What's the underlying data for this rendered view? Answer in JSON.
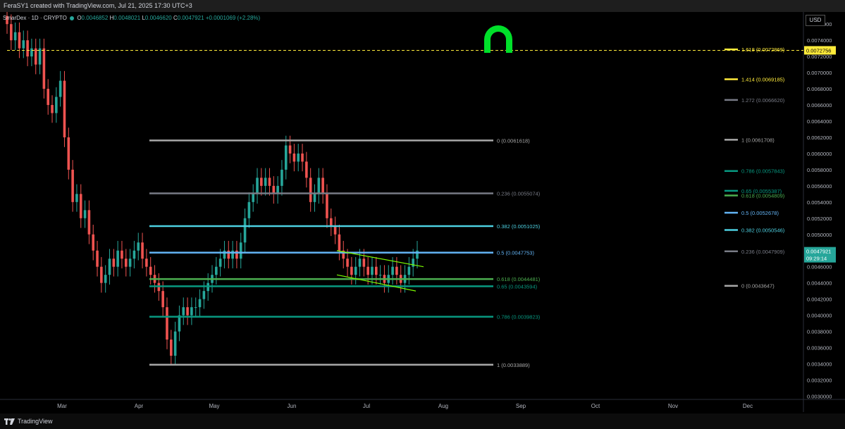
{
  "header": {
    "credit": "FeraSY1 created with TradingView.com, Jul 21, 2025 17:30 UTC+3"
  },
  "legend": {
    "symbol": "SmarDex · 1D · CRYPTO",
    "open_label": "O",
    "open": "0.0046852",
    "high_label": "H",
    "high": "0.0048021",
    "low_label": "L",
    "low": "0.0046620",
    "close_label": "C",
    "close": "0.0047921",
    "change": "+0.0001069 (+2.28%)"
  },
  "currency": "USD",
  "footer": {
    "brand": "TradingView"
  },
  "colors": {
    "up": "#26a69a",
    "down": "#ef5350",
    "logo_green": "#00e02a",
    "fib_white": "#a8a8a8",
    "fib_gray": "#787b86",
    "fib_cyan": "#4dd0e1",
    "fib_blue": "#64b5f6",
    "fib_lime": "#4caf50",
    "fib_teal": "#089981",
    "fib_yellow": "#ffeb3b",
    "wedge": "#7cfc00"
  },
  "chart_data": {
    "type": "candlestick",
    "title": "",
    "ylim": [
      0.0029,
      0.0078
    ],
    "y_ticks": [
      "0.0076000",
      "0.0074000",
      "0.0072000",
      "0.0070000",
      "0.0068000",
      "0.0066000",
      "0.0064000",
      "0.0062000",
      "0.0060000",
      "0.0058000",
      "0.0056000",
      "0.0054000",
      "0.0052000",
      "0.0050000",
      "0.0048000",
      "0.0046000",
      "0.0044000",
      "0.0042000",
      "0.0040000",
      "0.0038000",
      "0.0036000",
      "0.0034000",
      "0.0032000",
      "0.0030000"
    ],
    "x_ticks": [
      "Mar",
      "Apr",
      "May",
      "Jun",
      "Jul",
      "Aug",
      "Sep",
      "Oct",
      "Nov",
      "Dec"
    ],
    "current_price": {
      "value": "0.0047921",
      "countdown": "09:29:14"
    },
    "dashed_level": {
      "value": "0.0072756"
    },
    "candles_close": [
      0.0076,
      0.0074,
      0.0075,
      0.0073,
      0.0074,
      0.0072,
      0.0073,
      0.0071,
      0.0073,
      0.0068,
      0.0066,
      0.0065,
      0.0067,
      0.0069,
      0.0062,
      0.0058,
      0.0054,
      0.0055,
      0.0052,
      0.0053,
      0.005,
      0.0048,
      0.0046,
      0.0044,
      0.0045,
      0.0047,
      0.0046,
      0.0048,
      0.0047,
      0.0046,
      0.0047,
      0.0048,
      0.0049,
      0.0047,
      0.0046,
      0.0045,
      0.0044,
      0.0043,
      0.0041,
      0.0037,
      0.0035,
      0.0038,
      0.004,
      0.0041,
      0.004,
      0.0041,
      0.0041,
      0.0042,
      0.0043,
      0.0044,
      0.0045,
      0.0046,
      0.0047,
      0.0048,
      0.0047,
      0.0048,
      0.0047,
      0.0049,
      0.0052,
      0.0054,
      0.0055,
      0.0057,
      0.0056,
      0.0057,
      0.0056,
      0.0055,
      0.0056,
      0.0058,
      0.0061,
      0.006,
      0.0059,
      0.006,
      0.0059,
      0.0057,
      0.0054,
      0.0055,
      0.0057,
      0.0055,
      0.0052,
      0.0051,
      0.005,
      0.0048,
      0.0047,
      0.0046,
      0.0045,
      0.0046,
      0.0047,
      0.0046,
      0.0045,
      0.0046,
      0.0045,
      0.0045,
      0.0044,
      0.0045,
      0.0046,
      0.0045,
      0.0044,
      0.0045,
      0.0046,
      0.0047,
      0.0048
    ],
    "fib_main": [
      {
        "label": "0 (0.0061618)",
        "value": 0.0061618,
        "color": "fib_white"
      },
      {
        "label": "0.236 (0.0055074)",
        "value": 0.0055074,
        "color": "fib_gray"
      },
      {
        "label": "0.382 (0.0051025)",
        "value": 0.0051025,
        "color": "fib_cyan"
      },
      {
        "label": "0.5 (0.0047753)",
        "value": 0.0047753,
        "color": "fib_blue"
      },
      {
        "label": "0.618 (0.0044481)",
        "value": 0.0044481,
        "color": "fib_lime"
      },
      {
        "label": "0.65 (0.0043594)",
        "value": 0.0043594,
        "color": "fib_teal"
      },
      {
        "label": "0.786 (0.0039823)",
        "value": 0.0039823,
        "color": "fib_teal"
      },
      {
        "label": "1 (0.0033889)",
        "value": 0.0033889,
        "color": "fib_white"
      }
    ],
    "fib_ext": [
      {
        "label": "1.618 (0.0072869)",
        "value": 0.0072869,
        "color": "fib_yellow"
      },
      {
        "label": "1.414 (0.0069185)",
        "value": 0.0069185,
        "color": "fib_yellow"
      },
      {
        "label": "1.272 (0.0066620)",
        "value": 0.006662,
        "color": "fib_gray"
      },
      {
        "label": "1 (0.0061708)",
        "value": 0.0061708,
        "color": "fib_white"
      },
      {
        "label": "0.786 (0.0057843)",
        "value": 0.0057843,
        "color": "fib_teal"
      },
      {
        "label": "0.65 (0.0055387)",
        "value": 0.0055387,
        "color": "fib_teal"
      },
      {
        "label": "0.618 (0.0054809)",
        "value": 0.0054809,
        "color": "fib_lime"
      },
      {
        "label": "0.5 (0.0052678)",
        "value": 0.0052678,
        "color": "fib_blue"
      },
      {
        "label": "0.382 (0.0050546)",
        "value": 0.0050546,
        "color": "fib_cyan"
      },
      {
        "label": "0.236 (0.0047909)",
        "value": 0.0047909,
        "color": "fib_gray"
      },
      {
        "label": "0 (0.0043647)",
        "value": 0.0043647,
        "color": "fib_white"
      }
    ],
    "wedge": {
      "upper": [
        [
          0.0048,
          "Jun 20"
        ],
        [
          0.0046,
          "Jul 26"
        ]
      ],
      "lower": [
        [
          0.0045,
          "Jun 20"
        ],
        [
          0.0043,
          "Jul 26"
        ]
      ]
    }
  }
}
